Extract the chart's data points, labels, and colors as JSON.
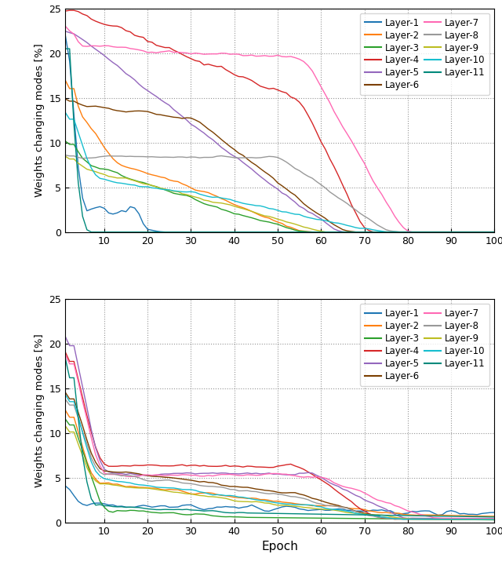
{
  "colors": {
    "Layer-1": "#1f77b4",
    "Layer-2": "#ff7f0e",
    "Layer-3": "#2ca02c",
    "Layer-4": "#d62728",
    "Layer-5": "#9467bd",
    "Layer-6": "#7b3f00",
    "Layer-7": "#ff69b4",
    "Layer-8": "#999999",
    "Layer-9": "#bcbd22",
    "Layer-10": "#17becf",
    "Layer-11": "#00897b"
  },
  "ylabel": "Weights changing modes [%]",
  "xlabel": "Epoch",
  "ylim": [
    0,
    25
  ],
  "xlim": [
    1,
    100
  ],
  "xticks": [
    10,
    20,
    30,
    40,
    50,
    60,
    70,
    80,
    90,
    100
  ],
  "yticks": [
    0,
    5,
    10,
    15,
    20,
    25
  ],
  "legend_left": [
    "Layer-1",
    "Layer-3",
    "Layer-5",
    "Layer-7",
    "Layer-9",
    "Layer-11"
  ],
  "legend_right": [
    "Layer-2",
    "Layer-4",
    "Layer-6",
    "Layer-8",
    "Layer-10"
  ],
  "layers": [
    "Layer-1",
    "Layer-2",
    "Layer-3",
    "Layer-4",
    "Layer-5",
    "Layer-6",
    "Layer-7",
    "Layer-8",
    "Layer-9",
    "Layer-10",
    "Layer-11"
  ]
}
